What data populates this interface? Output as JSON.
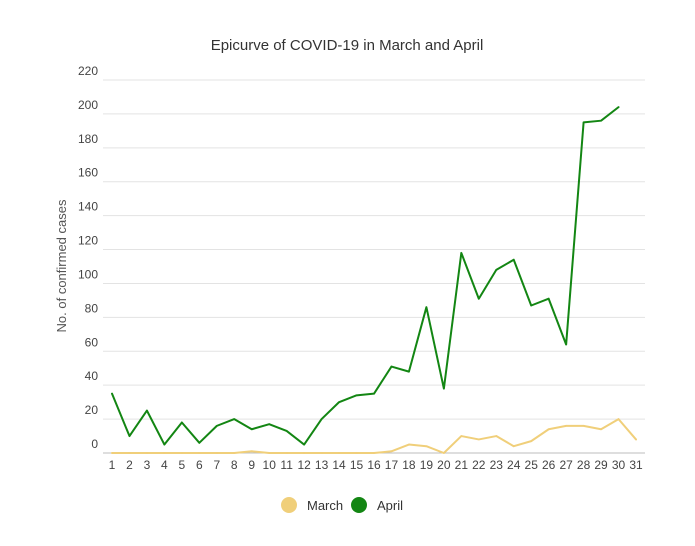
{
  "chart_data": {
    "type": "line",
    "title": "Epicurve of COVID-19 in March and April",
    "xlabel": "",
    "ylabel": "No. of confirmed cases",
    "ylim": [
      0,
      220
    ],
    "yticks": [
      0,
      20,
      40,
      60,
      80,
      100,
      120,
      140,
      160,
      180,
      200,
      220
    ],
    "x": [
      1,
      2,
      3,
      4,
      5,
      6,
      7,
      8,
      9,
      10,
      11,
      12,
      13,
      14,
      15,
      16,
      17,
      18,
      19,
      20,
      21,
      22,
      23,
      24,
      25,
      26,
      27,
      28,
      29,
      30,
      31
    ],
    "grid": true,
    "legend_position": "bottom",
    "series": [
      {
        "name": "March",
        "color": "#f0cf7a",
        "values": [
          0,
          0,
          0,
          0,
          0,
          0,
          0,
          0,
          1,
          0,
          0,
          0,
          0,
          0,
          0,
          0,
          1,
          5,
          4,
          0,
          10,
          8,
          10,
          4,
          7,
          14,
          16,
          16,
          14,
          20,
          8
        ]
      },
      {
        "name": "April",
        "color": "#138613",
        "values": [
          35,
          10,
          25,
          5,
          18,
          6,
          16,
          20,
          14,
          17,
          13,
          5,
          20,
          30,
          34,
          35,
          51,
          48,
          86,
          38,
          118,
          91,
          108,
          114,
          87,
          91,
          64,
          195,
          196,
          204,
          null
        ]
      }
    ]
  }
}
